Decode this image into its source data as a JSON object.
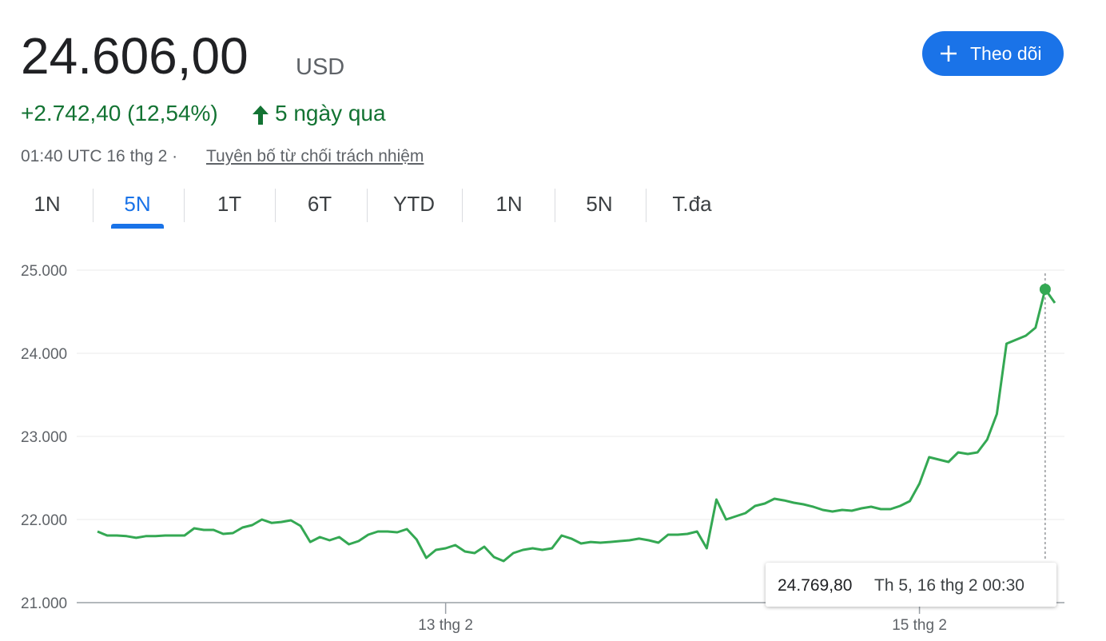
{
  "header": {
    "price": "24.606,00",
    "currency": "USD",
    "change": "+2.742,40 (12,54%)",
    "period": "5 ngày qua",
    "timestamp": "01:40 UTC 16 thg 2 ·",
    "disclaimer": "Tuyên bố từ chối trách nhiệm",
    "follow_button": "Theo dõi"
  },
  "tabs": [
    "1N",
    "5N",
    "1T",
    "6T",
    "YTD",
    "1N",
    "5N",
    "T.đa"
  ],
  "selected_tab": 1,
  "chart_data": {
    "type": "line",
    "color": "#34a853",
    "categories": [
      null,
      null,
      null,
      null,
      null,
      null,
      null,
      null,
      null,
      null,
      null,
      null,
      null,
      null,
      null,
      null,
      null,
      null,
      null,
      null,
      null,
      null,
      null,
      null,
      null,
      null,
      null,
      null,
      null,
      null,
      null,
      null,
      null,
      null,
      null,
      null,
      "13 thg 2",
      null,
      null,
      null,
      null,
      null,
      null,
      null,
      null,
      null,
      null,
      null,
      null,
      null,
      null,
      null,
      null,
      null,
      null,
      null,
      null,
      null,
      null,
      null,
      null,
      null,
      null,
      null,
      null,
      null,
      null,
      null,
      null,
      null,
      null,
      null,
      null,
      null,
      null,
      null,
      null,
      null,
      null,
      null,
      null,
      null,
      null,
      null,
      null,
      "15 thg 2",
      null,
      null,
      null,
      null,
      null,
      null,
      null,
      null,
      null,
      null,
      null,
      null,
      null,
      null
    ],
    "values": [
      21856,
      21808,
      21808,
      21800,
      21780,
      21800,
      21800,
      21808,
      21808,
      21808,
      21894,
      21875,
      21875,
      21827,
      21837,
      21904,
      21933,
      22000,
      21960,
      21970,
      21990,
      21923,
      21730,
      21788,
      21750,
      21788,
      21702,
      21740,
      21817,
      21856,
      21856,
      21846,
      21885,
      21760,
      21538,
      21635,
      21654,
      21692,
      21615,
      21596,
      21673,
      21548,
      21500,
      21596,
      21635,
      21654,
      21635,
      21654,
      21808,
      21770,
      21712,
      21730,
      21721,
      21730,
      21740,
      21750,
      21770,
      21750,
      21721,
      21817,
      21817,
      21827,
      21856,
      21654,
      22240,
      22000,
      22038,
      22077,
      22163,
      22192,
      22250,
      22230,
      22202,
      22183,
      22154,
      22115,
      22096,
      22115,
      22106,
      22135,
      22154,
      22125,
      22125,
      22163,
      22221,
      22433,
      22750,
      22721,
      22692,
      22808,
      22788,
      22808,
      22962,
      23269,
      24115,
      24163,
      24212,
      24308,
      24769.8,
      24606
    ],
    "ylim": [
      21000,
      25000
    ],
    "yticks": [
      {
        "value": 21000,
        "label": "21.000"
      },
      {
        "value": 22000,
        "label": "22.000"
      },
      {
        "value": 23000,
        "label": "23.000"
      },
      {
        "value": 24000,
        "label": "24.000"
      },
      {
        "value": 25000,
        "label": "25.000"
      }
    ],
    "grid": true,
    "tooltip": {
      "index": 98,
      "label": "24.769,80",
      "date": "Th 5, 16 thg 2 00:30"
    }
  }
}
